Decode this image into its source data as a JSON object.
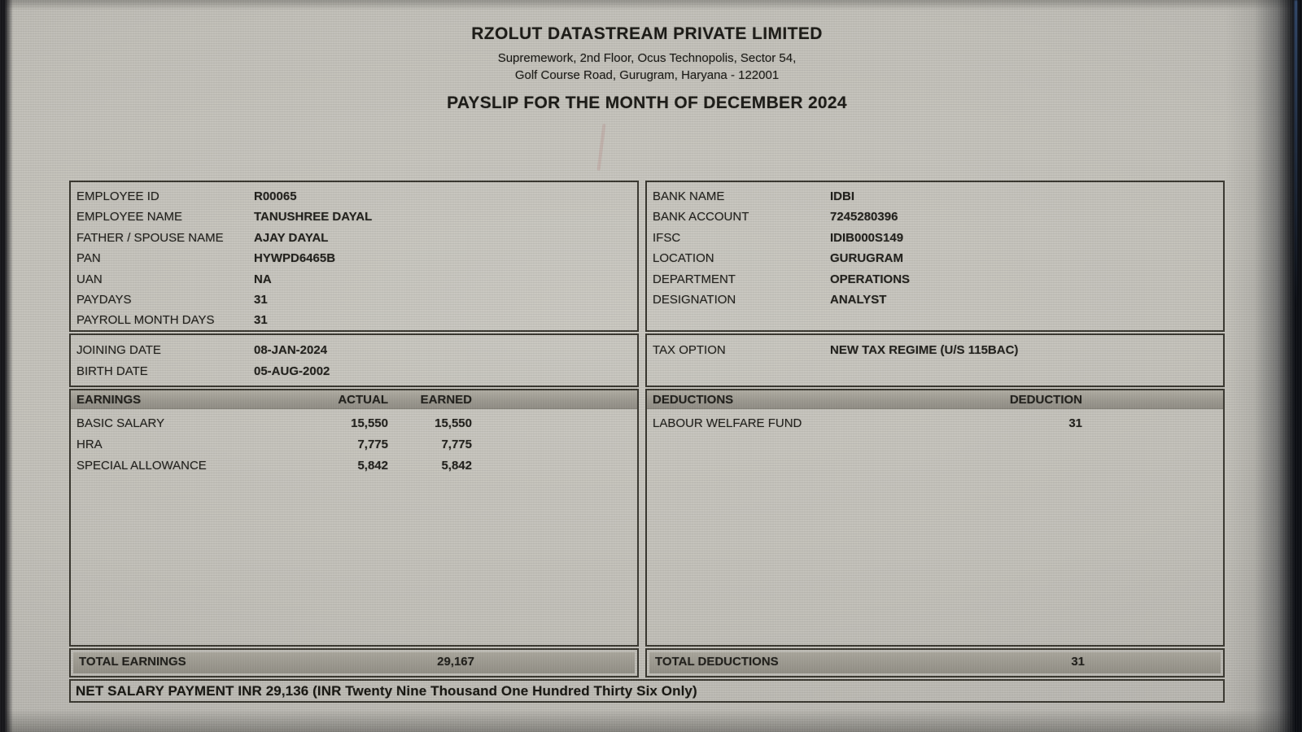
{
  "header": {
    "company_name": "RZOLUT DATASTREAM PRIVATE LIMITED",
    "address_line1": "Supremework, 2nd Floor, Ocus Technopolis, Sector 54,",
    "address_line2": "Golf Course Road, Gurugram, Haryana - 122001",
    "payslip_title": "PAYSLIP FOR THE MONTH OF DECEMBER 2024"
  },
  "employee_info": {
    "rows": [
      {
        "label": "EMPLOYEE ID",
        "value": "R00065"
      },
      {
        "label": "EMPLOYEE NAME",
        "value": "TANUSHREE DAYAL"
      },
      {
        "label": "FATHER / SPOUSE NAME",
        "value": "AJAY DAYAL"
      },
      {
        "label": "PAN",
        "value": "HYWPD6465B"
      },
      {
        "label": "UAN",
        "value": "NA"
      },
      {
        "label": "PAYDAYS",
        "value": "31"
      },
      {
        "label": "PAYROLL MONTH DAYS",
        "value": "31"
      }
    ]
  },
  "bank_info": {
    "rows": [
      {
        "label": "BANK NAME",
        "value": "IDBI"
      },
      {
        "label": "BANK ACCOUNT",
        "value": "7245280396"
      },
      {
        "label": "IFSC",
        "value": "IDIB000S149"
      },
      {
        "label": "LOCATION",
        "value": "GURUGRAM"
      },
      {
        "label": "DEPARTMENT",
        "value": "OPERATIONS"
      },
      {
        "label": "DESIGNATION",
        "value": "ANALYST"
      }
    ]
  },
  "dates_info": {
    "rows": [
      {
        "label": "JOINING DATE",
        "value": "08-JAN-2024"
      },
      {
        "label": "BIRTH DATE",
        "value": "05-AUG-2002"
      }
    ]
  },
  "tax_info": {
    "label": "TAX OPTION",
    "value": "NEW TAX REGIME (U/S 115BAC)"
  },
  "earnings": {
    "header": {
      "title": "EARNINGS",
      "col_actual": "ACTUAL",
      "col_earned": "EARNED"
    },
    "rows": [
      {
        "label": "BASIC SALARY",
        "actual": "15,550",
        "earned": "15,550"
      },
      {
        "label": "HRA",
        "actual": "7,775",
        "earned": "7,775"
      },
      {
        "label": "SPECIAL ALLOWANCE",
        "actual": "5,842",
        "earned": "5,842"
      }
    ],
    "total_label": "TOTAL EARNINGS",
    "total_value": "29,167"
  },
  "deductions": {
    "header": {
      "title": "DEDUCTIONS",
      "col_deduction": "DEDUCTION"
    },
    "rows": [
      {
        "label": "LABOUR WELFARE FUND",
        "deduction": "31"
      }
    ],
    "total_label": "TOTAL DEDUCTIONS",
    "total_value": "31"
  },
  "footer": {
    "net_salary_text": "NET SALARY PAYMENT INR 29,136 (INR Twenty Nine Thousand One Hundred Thirty Six Only)"
  },
  "colors": {
    "screen_background": "#c1bfb8",
    "section_bar_gray": "#9b988f",
    "border_dark": "#38362f",
    "text_dark": "#201f1b",
    "edge_shadow": "#0c0e13",
    "edge_blue_tint": "#3d5a86"
  }
}
